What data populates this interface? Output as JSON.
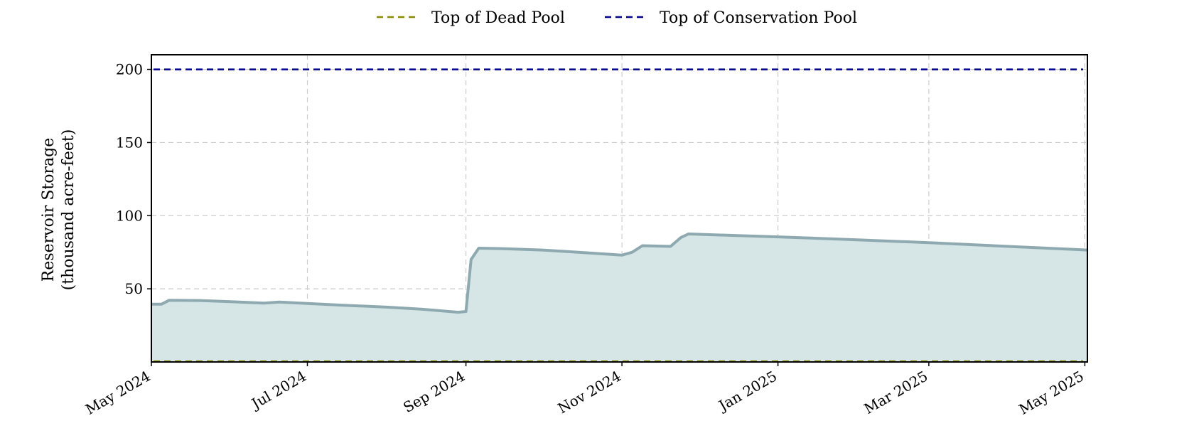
{
  "chart_data": {
    "type": "area",
    "title": "",
    "xlabel": "",
    "ylabel": [
      "Reservoir Storage",
      "(thousand acre-feet)"
    ],
    "x_ticks": [
      "May 2024",
      "Jul 2024",
      "Sep 2024",
      "Nov 2024",
      "Jan 2025",
      "Mar 2025",
      "May 2025"
    ],
    "y_ticks": [
      50,
      100,
      150,
      200
    ],
    "xlim": [
      "2024-05-01",
      "2025-05-02"
    ],
    "ylim": [
      0,
      210
    ],
    "grid": true,
    "legend_position": "top-center",
    "legend": [
      {
        "label": "Top of Dead Pool",
        "color": "#8a8a00",
        "style": "dashed"
      },
      {
        "label": "Top of Conservation Pool",
        "color": "#00008b",
        "style": "dashed"
      }
    ],
    "reference_lines": [
      {
        "name": "Top of Dead Pool",
        "y": 0,
        "color": "#8a8a00"
      },
      {
        "name": "Top of Conservation Pool",
        "y": 200,
        "color": "#00008b"
      }
    ],
    "series": [
      {
        "color": "#8eaab0",
        "fill": "#d6e5e6",
        "points": [
          [
            "2024-05-01",
            39.5
          ],
          [
            "2024-05-05",
            39.5
          ],
          [
            "2024-05-08",
            42.2
          ],
          [
            "2024-05-20",
            42.0
          ],
          [
            "2024-06-01",
            41.2
          ],
          [
            "2024-06-14",
            40.2
          ],
          [
            "2024-06-20",
            41.0
          ],
          [
            "2024-07-01",
            40.0
          ],
          [
            "2024-07-15",
            38.8
          ],
          [
            "2024-08-01",
            37.5
          ],
          [
            "2024-08-15",
            36.0
          ],
          [
            "2024-08-29",
            34.0
          ],
          [
            "2024-09-01",
            34.5
          ],
          [
            "2024-09-03",
            70.0
          ],
          [
            "2024-09-06",
            77.8
          ],
          [
            "2024-09-15",
            77.5
          ],
          [
            "2024-10-01",
            76.5
          ],
          [
            "2024-10-15",
            75.0
          ],
          [
            "2024-11-01",
            73.0
          ],
          [
            "2024-11-05",
            75.0
          ],
          [
            "2024-11-09",
            79.5
          ],
          [
            "2024-11-20",
            79.0
          ],
          [
            "2024-11-24",
            85.0
          ],
          [
            "2024-11-27",
            87.5
          ],
          [
            "2024-12-15",
            86.5
          ],
          [
            "2025-01-01",
            85.5
          ],
          [
            "2025-02-01",
            83.5
          ],
          [
            "2025-03-01",
            81.5
          ],
          [
            "2025-04-01",
            79.0
          ],
          [
            "2025-05-02",
            76.5
          ]
        ]
      }
    ]
  }
}
